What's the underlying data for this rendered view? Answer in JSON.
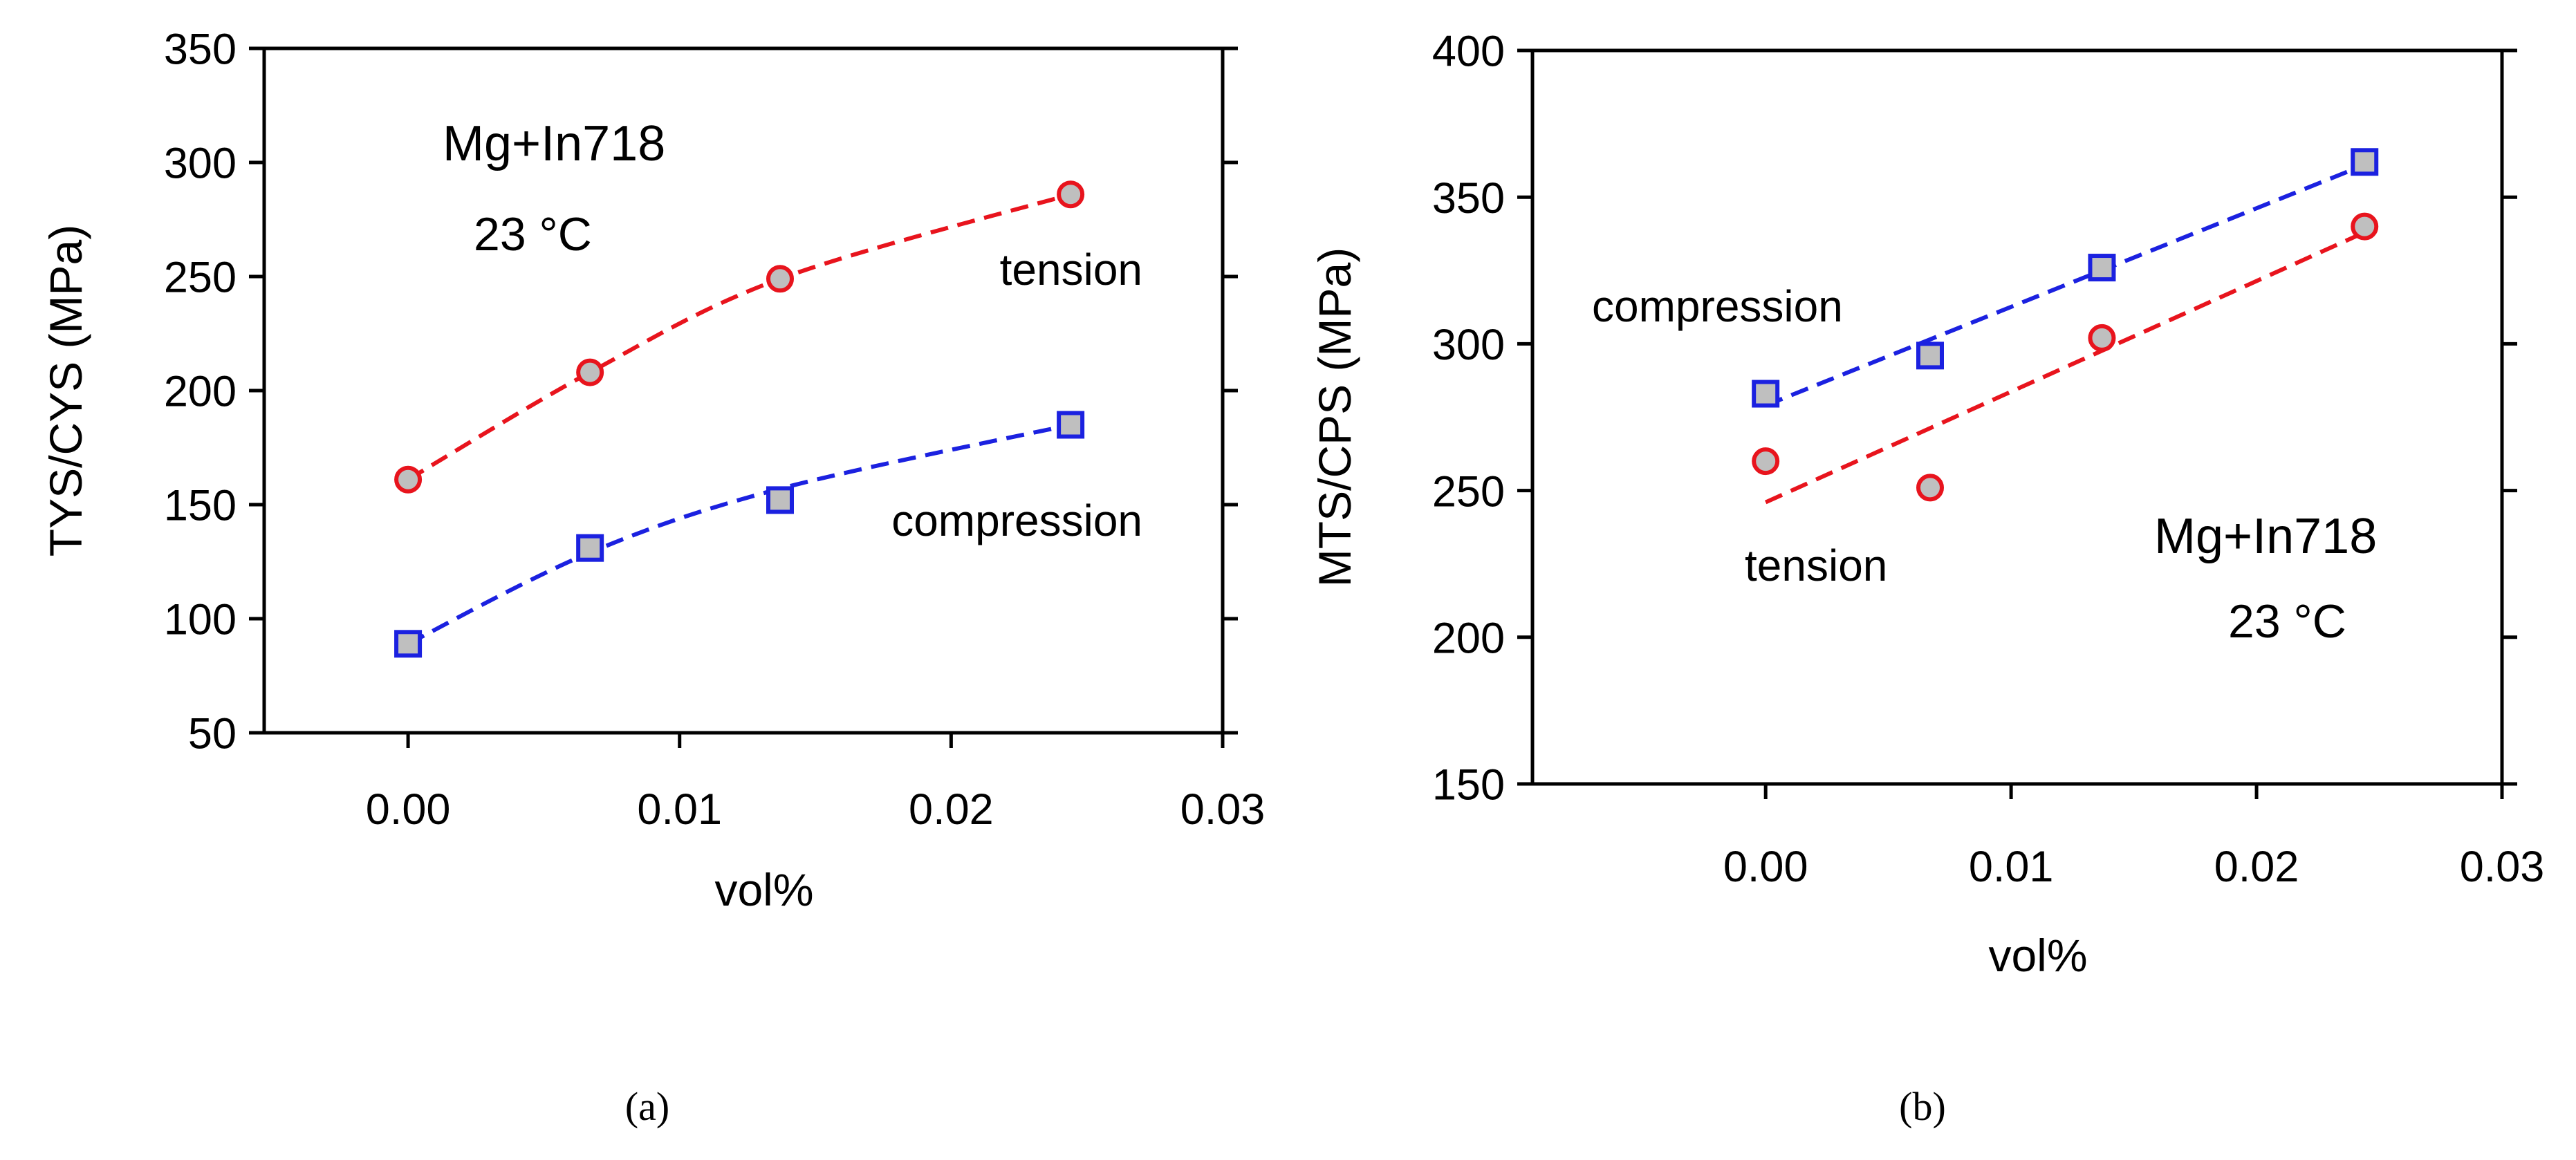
{
  "chart_data": [
    {
      "type": "line",
      "panel_label": "(a)",
      "title": "",
      "xlabel": "vol%",
      "ylabel": "TYS/CYS (MPa)",
      "xlim": [
        -0.0053,
        0.03
      ],
      "ylim": [
        50,
        350
      ],
      "xticks": [
        0.0,
        0.01,
        0.02,
        0.03
      ],
      "xtick_labels": [
        "0.00",
        "0.01",
        "0.02",
        "0.03"
      ],
      "yticks": [
        50,
        100,
        150,
        200,
        250,
        300,
        350
      ],
      "ytick_labels": [
        "50",
        "100",
        "150",
        "200",
        "250",
        "300",
        "350"
      ],
      "grid": false,
      "annotations": [
        "Mg+In718",
        "23 °C"
      ],
      "series": [
        {
          "name": "tension",
          "marker": "circle",
          "line_color": "#e8141d",
          "marker_edge": "#e8141d",
          "marker_fill": "#bfbfbf",
          "fit": "curve",
          "x": [
            0.0,
            0.0067,
            0.0137,
            0.0244
          ],
          "y": [
            161,
            208,
            249,
            286
          ],
          "fit_y": [
            161,
            208,
            249,
            286
          ]
        },
        {
          "name": "compression",
          "marker": "square",
          "line_color": "#1b21e0",
          "marker_edge": "#1b21e0",
          "marker_fill": "#bfbfbf",
          "fit": "curve",
          "x": [
            0.0,
            0.0067,
            0.0137,
            0.0244
          ],
          "y": [
            89,
            131,
            152,
            185
          ],
          "fit_y": [
            89,
            129,
            157,
            185
          ]
        }
      ]
    },
    {
      "type": "line",
      "panel_label": "(b)",
      "title": "",
      "xlabel": "vol%",
      "ylabel": "MTS/CPS (MPa)",
      "xlim": [
        -0.0095,
        0.03
      ],
      "ylim": [
        150,
        400
      ],
      "xticks": [
        0.0,
        0.01,
        0.02,
        0.03
      ],
      "xtick_labels": [
        "0.00",
        "0.01",
        "0.02",
        "0.03"
      ],
      "yticks": [
        150,
        200,
        250,
        300,
        350,
        400
      ],
      "ytick_labels": [
        "150",
        "200",
        "250",
        "300",
        "350",
        "400"
      ],
      "grid": false,
      "annotations": [
        "Mg+In718",
        "23 °C"
      ],
      "series": [
        {
          "name": "compression",
          "marker": "square",
          "line_color": "#1b21e0",
          "marker_edge": "#1b21e0",
          "marker_fill": "#bfbfbf",
          "fit": "linear",
          "x": [
            0.0,
            0.0067,
            0.0137,
            0.0244
          ],
          "y": [
            283,
            296,
            326,
            362
          ],
          "fit_x": [
            0.0,
            0.0244
          ],
          "fit_y": [
            279,
            361
          ]
        },
        {
          "name": "tension",
          "marker": "circle",
          "line_color": "#e8141d",
          "marker_edge": "#e8141d",
          "marker_fill": "#bfbfbf",
          "fit": "linear",
          "x": [
            0.0,
            0.0067,
            0.0137,
            0.0244
          ],
          "y": [
            260,
            251,
            302,
            340
          ],
          "fit_x": [
            0.0,
            0.0244
          ],
          "fit_y": [
            246,
            338
          ]
        }
      ]
    }
  ]
}
